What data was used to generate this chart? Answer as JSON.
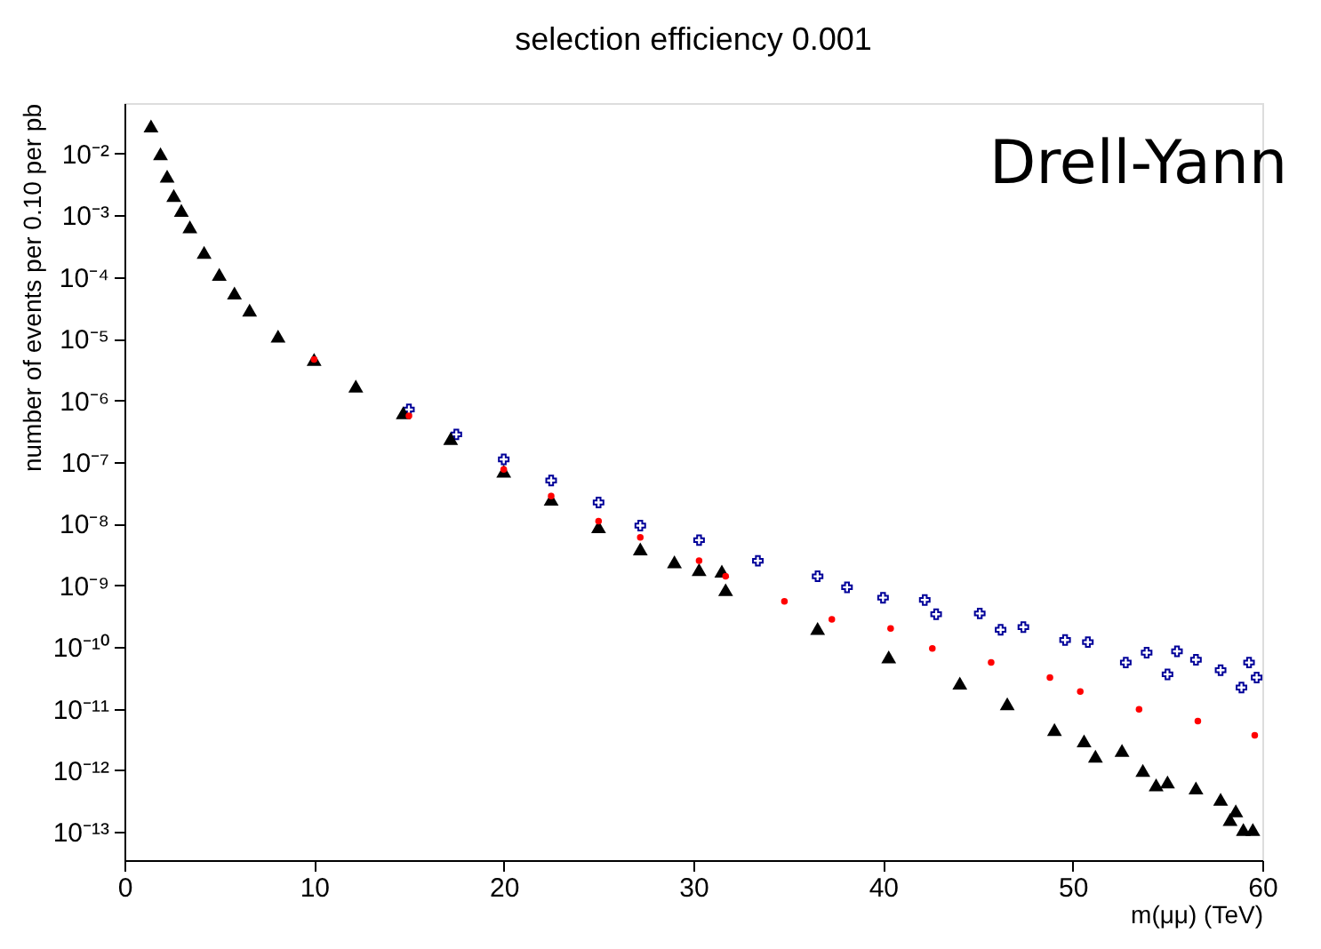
{
  "chart_data": {
    "type": "scatter",
    "title": "selection efficiency 0.001",
    "xlabel": "m(μμ) (TeV)",
    "ylabel": "number of events per 0.10 per pb",
    "annotations": [
      "Drell-Yann"
    ],
    "log": "y",
    "grid": false,
    "xlim": [
      0,
      60
    ],
    "xticks": [
      0,
      10,
      20,
      30,
      40,
      50,
      60
    ],
    "ylim": [
      3.5e-14,
      0.066
    ],
    "yticks": [
      {
        "value": 1e-13,
        "label": "10⁻¹³"
      },
      {
        "value": 1e-12,
        "label": "10⁻¹²"
      },
      {
        "value": 1e-11,
        "label": "10⁻¹¹"
      },
      {
        "value": 1e-10,
        "label": "10⁻¹⁰"
      },
      {
        "value": 1e-09,
        "label": "10⁻⁹"
      },
      {
        "value": 1e-08,
        "label": "10⁻⁸"
      },
      {
        "value": 1e-07,
        "label": "10⁻⁷"
      },
      {
        "value": 1e-06,
        "label": "10⁻⁶"
      },
      {
        "value": 1e-05,
        "label": "10⁻⁵"
      },
      {
        "value": 0.0001,
        "label": "10⁻⁴"
      },
      {
        "value": 0.001,
        "label": "10⁻³"
      },
      {
        "value": 0.01,
        "label": "10⁻²"
      }
    ],
    "series": [
      {
        "color": "#000099",
        "marker": "cross",
        "x": [
          15,
          17.5,
          20,
          22.5,
          25,
          27.2,
          30.3,
          33.4,
          36.55,
          38.1,
          40.0,
          42.2,
          42.8,
          45.1,
          46.2,
          47.4,
          49.6,
          50.8,
          52.8,
          53.9,
          55.0,
          55.5,
          56.5,
          57.8,
          58.9,
          59.3,
          59.7
        ],
        "values": [
          7.1e-07,
          2.8e-07,
          1.1e-07,
          5e-08,
          2.2e-08,
          9.3e-09,
          5.4e-09,
          2.5e-09,
          1.4e-09,
          9.3e-10,
          6.3e-10,
          5.8e-10,
          3.4e-10,
          3.5e-10,
          1.9e-10,
          2.1e-10,
          1.3e-10,
          1.2e-10,
          5.6e-11,
          8.1e-11,
          3.6e-11,
          8.5e-11,
          6.2e-11,
          4.2e-11,
          2.2e-11,
          5.6e-11,
          3.2e-11
        ]
      },
      {
        "color": "#000000",
        "marker": "triangle",
        "x": [
          1.4,
          1.9,
          2.25,
          2.6,
          3.0,
          3.45,
          4.2,
          5.0,
          5.8,
          6.6,
          8.1,
          10,
          12.2,
          14.7,
          17.2,
          20,
          22.5,
          25,
          27.2,
          29,
          30.3,
          31.5,
          31.7,
          36.55,
          40.3,
          44.05,
          46.55,
          49.04,
          50.6,
          51.2,
          52.6,
          53.7,
          54.4,
          55.0,
          56.5,
          57.8,
          58.3,
          58.6,
          59.0,
          59.5
        ],
        "values": [
          0.028,
          0.01,
          0.0043,
          0.0021,
          0.0012,
          0.00065,
          0.00025,
          0.00011,
          5.5e-05,
          2.9e-05,
          1.1e-05,
          4.6e-06,
          1.7e-06,
          6.3e-07,
          2.4e-07,
          7.1e-08,
          2.5e-08,
          8.9e-09,
          3.9e-09,
          2.4e-09,
          1.8e-09,
          1.7e-09,
          8.5e-10,
          2e-10,
          6.9e-11,
          2.6e-11,
          1.2e-11,
          4.6e-12,
          3e-12,
          1.7e-12,
          2.1e-12,
          1e-12,
          5.8e-13,
          6.5e-13,
          5.2e-13,
          3.4e-13,
          1.6e-13,
          2.2e-13,
          1.1e-13,
          1.1e-13
        ]
      },
      {
        "color": "#ff0000",
        "marker": "circle",
        "x": [
          10,
          15,
          20,
          22.5,
          25,
          27.2,
          30.3,
          31.7,
          34.8,
          37.3,
          40.4,
          42.6,
          45.7,
          48.8,
          50.4,
          53.5,
          56.6,
          59.6
        ],
        "values": [
          4.6e-06,
          5.6e-07,
          7.6e-08,
          2.8e-08,
          1.1e-08,
          6e-09,
          2.5e-09,
          1.4e-09,
          5.5e-10,
          2.8e-10,
          2e-10,
          9.5e-11,
          5.6e-11,
          3.2e-11,
          1.9e-11,
          9.8e-12,
          6.3e-12,
          3.7e-12
        ]
      }
    ]
  }
}
